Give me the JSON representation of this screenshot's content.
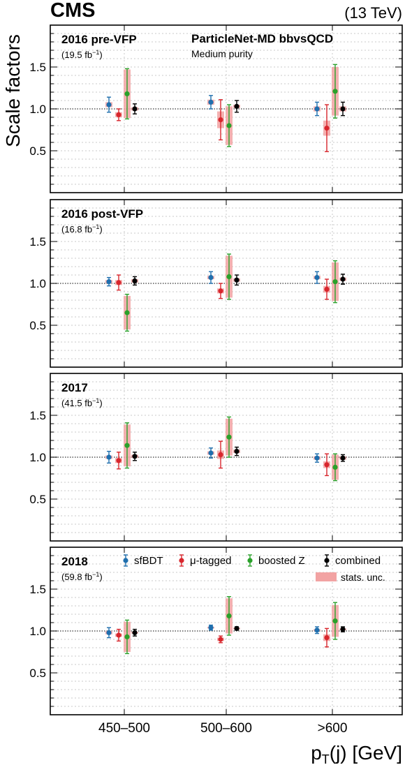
{
  "header": {
    "experiment": "CMS",
    "energy": "(13 TeV)"
  },
  "annotation": {
    "tagger": "ParticleNet-MD bbvsQCD",
    "purity": "Medium purity"
  },
  "colors": {
    "sfbdt": "#1f6fae",
    "mutag": "#d8262d",
    "boostedz": "#2aa12a",
    "combined": "#000000",
    "band": "#f2a3a3"
  },
  "legend": {
    "sfbdt": "sfBDT",
    "mutag": "μ-tagged",
    "boostedz": "boosted Z",
    "combined": "combined",
    "stats": "stats. unc."
  },
  "chart_data": {
    "type": "scatter",
    "xlabel": "pT(j) [GeV]",
    "ylabel": "Scale factors",
    "ylim": [
      0,
      2
    ],
    "yticks": [
      "0.5",
      "1.0",
      "1.5"
    ],
    "reference_line": 1.0,
    "categories": [
      "450–500",
      "500–600",
      ">600"
    ],
    "panels": [
      {
        "title": "2016 pre-VFP",
        "lumi": "(19.5 fb",
        "series": [
          {
            "name": "sfBDT",
            "values": [
              [
                1.05,
                0.09,
                0.03
              ],
              [
                1.08,
                0.08,
                0.03
              ],
              [
                1.0,
                0.08,
                0.03
              ]
            ]
          },
          {
            "name": "μ-tagged",
            "values": [
              [
                0.93,
                0.07,
                0.03
              ],
              [
                0.87,
                0.24,
                0.1
              ],
              [
                0.77,
                0.28,
                0.09
              ]
            ]
          },
          {
            "name": "boosted Z",
            "values": [
              [
                1.18,
                0.3,
                0.29
              ],
              [
                0.8,
                0.25,
                0.23
              ],
              [
                1.21,
                0.32,
                0.29
              ]
            ]
          },
          {
            "name": "combined",
            "values": [
              [
                1.0,
                0.06,
                0.02
              ],
              [
                1.03,
                0.07,
                0.02
              ],
              [
                1.0,
                0.08,
                0.03
              ]
            ]
          }
        ]
      },
      {
        "title": "2016 post-VFP",
        "lumi": "(16.8 fb",
        "series": [
          {
            "name": "sfBDT",
            "values": [
              [
                1.02,
                0.05,
                0.02
              ],
              [
                1.07,
                0.07,
                0.02
              ],
              [
                1.07,
                0.07,
                0.02
              ]
            ]
          },
          {
            "name": "μ-tagged",
            "values": [
              [
                1.01,
                0.09,
                0.03
              ],
              [
                0.91,
                0.09,
                0.03
              ],
              [
                0.93,
                0.12,
                0.04
              ]
            ]
          },
          {
            "name": "boosted Z",
            "values": [
              [
                0.65,
                0.22,
                0.2
              ],
              [
                1.08,
                0.27,
                0.25
              ],
              [
                1.02,
                0.25,
                0.23
              ]
            ]
          },
          {
            "name": "combined",
            "values": [
              [
                1.03,
                0.05,
                0.02
              ],
              [
                1.04,
                0.06,
                0.02
              ],
              [
                1.05,
                0.06,
                0.02
              ]
            ]
          }
        ]
      },
      {
        "title": "2017",
        "lumi": "(41.5 fb",
        "series": [
          {
            "name": "sfBDT",
            "values": [
              [
                1.0,
                0.07,
                0.02
              ],
              [
                1.05,
                0.06,
                0.02
              ],
              [
                0.99,
                0.05,
                0.02
              ]
            ]
          },
          {
            "name": "μ-tagged",
            "values": [
              [
                0.96,
                0.1,
                0.03
              ],
              [
                1.03,
                0.16,
                0.05
              ],
              [
                0.91,
                0.13,
                0.04
              ]
            ]
          },
          {
            "name": "boosted Z",
            "values": [
              [
                1.14,
                0.27,
                0.25
              ],
              [
                1.24,
                0.24,
                0.22
              ],
              [
                0.88,
                0.16,
                0.15
              ]
            ]
          },
          {
            "name": "combined",
            "values": [
              [
                1.01,
                0.05,
                0.02
              ],
              [
                1.07,
                0.05,
                0.02
              ],
              [
                0.99,
                0.04,
                0.02
              ]
            ]
          }
        ]
      },
      {
        "title": "2018",
        "lumi": "(59.8 fb",
        "series": [
          {
            "name": "sfBDT",
            "values": [
              [
                0.98,
                0.06,
                0.02
              ],
              [
                1.04,
                0.03,
                0.01
              ],
              [
                1.01,
                0.04,
                0.01
              ]
            ]
          },
          {
            "name": "μ-tagged",
            "values": [
              [
                0.95,
                0.07,
                0.02
              ],
              [
                0.9,
                0.04,
                0.02
              ],
              [
                0.92,
                0.11,
                0.04
              ]
            ]
          },
          {
            "name": "boosted Z",
            "values": [
              [
                0.93,
                0.2,
                0.18
              ],
              [
                1.18,
                0.23,
                0.21
              ],
              [
                1.12,
                0.22,
                0.19
              ]
            ]
          },
          {
            "name": "combined",
            "values": [
              [
                0.98,
                0.04,
                0.01
              ],
              [
                1.03,
                0.02,
                0.01
              ],
              [
                1.02,
                0.03,
                0.01
              ]
            ]
          }
        ]
      }
    ]
  }
}
